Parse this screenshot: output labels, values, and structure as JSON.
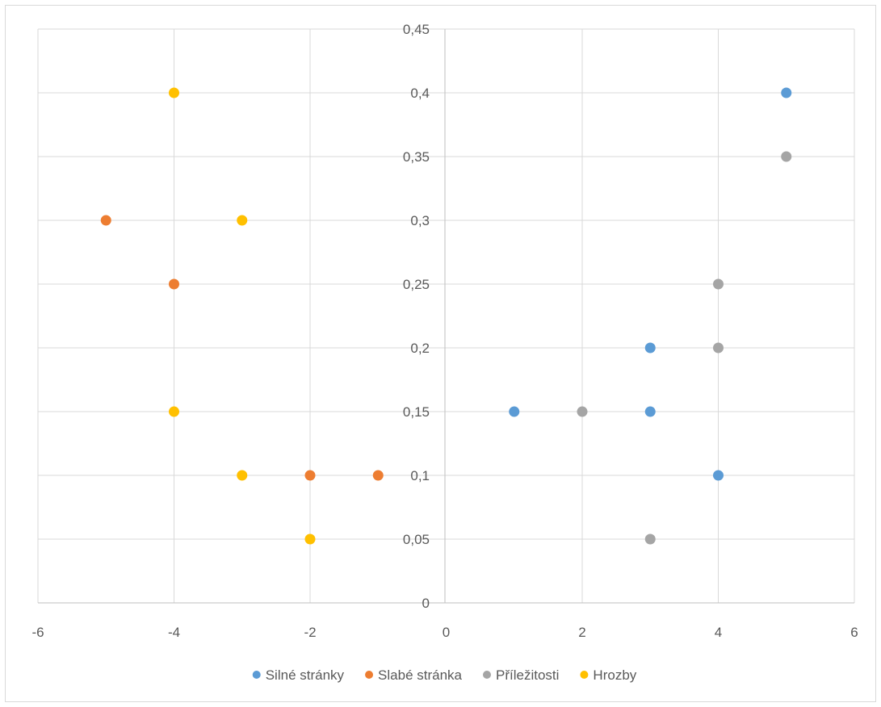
{
  "chart_data": {
    "type": "scatter",
    "title": "",
    "xlabel": "",
    "ylabel": "",
    "xlim": [
      -6,
      6
    ],
    "ylim": [
      0,
      0.45
    ],
    "x_ticks": [
      -6,
      -4,
      -2,
      0,
      2,
      4,
      6
    ],
    "x_tick_labels": [
      "-6",
      "-4",
      "-2",
      "0",
      "2",
      "4",
      "6"
    ],
    "y_ticks": [
      0,
      0.05,
      0.1,
      0.15,
      0.2,
      0.25,
      0.3,
      0.35,
      0.4,
      0.45
    ],
    "y_tick_labels": [
      "0",
      "0,05",
      "0,1",
      "0,15",
      "0,2",
      "0,25",
      "0,3",
      "0,35",
      "0,4",
      "0,45"
    ],
    "grid": true,
    "legend_position": "bottom",
    "series": [
      {
        "name": "Silné stránky",
        "color": "#5b9bd5",
        "points": [
          [
            1,
            0.15
          ],
          [
            3,
            0.2
          ],
          [
            3,
            0.15
          ],
          [
            4,
            0.1
          ],
          [
            5,
            0.4
          ]
        ]
      },
      {
        "name": "Slabé stránka",
        "color": "#ed7d31",
        "points": [
          [
            -5,
            0.3
          ],
          [
            -4,
            0.25
          ],
          [
            -2,
            0.1
          ],
          [
            -1,
            0.1
          ]
        ]
      },
      {
        "name": "Příležitosti",
        "color": "#a5a5a5",
        "points": [
          [
            5,
            0.35
          ],
          [
            4,
            0.25
          ],
          [
            4,
            0.2
          ],
          [
            2,
            0.15
          ],
          [
            3,
            0.05
          ]
        ]
      },
      {
        "name": "Hrozby",
        "color": "#ffc000",
        "points": [
          [
            -4,
            0.4
          ],
          [
            -3,
            0.3
          ],
          [
            -4,
            0.15
          ],
          [
            -3,
            0.1
          ],
          [
            -2,
            0.05
          ]
        ]
      }
    ]
  }
}
